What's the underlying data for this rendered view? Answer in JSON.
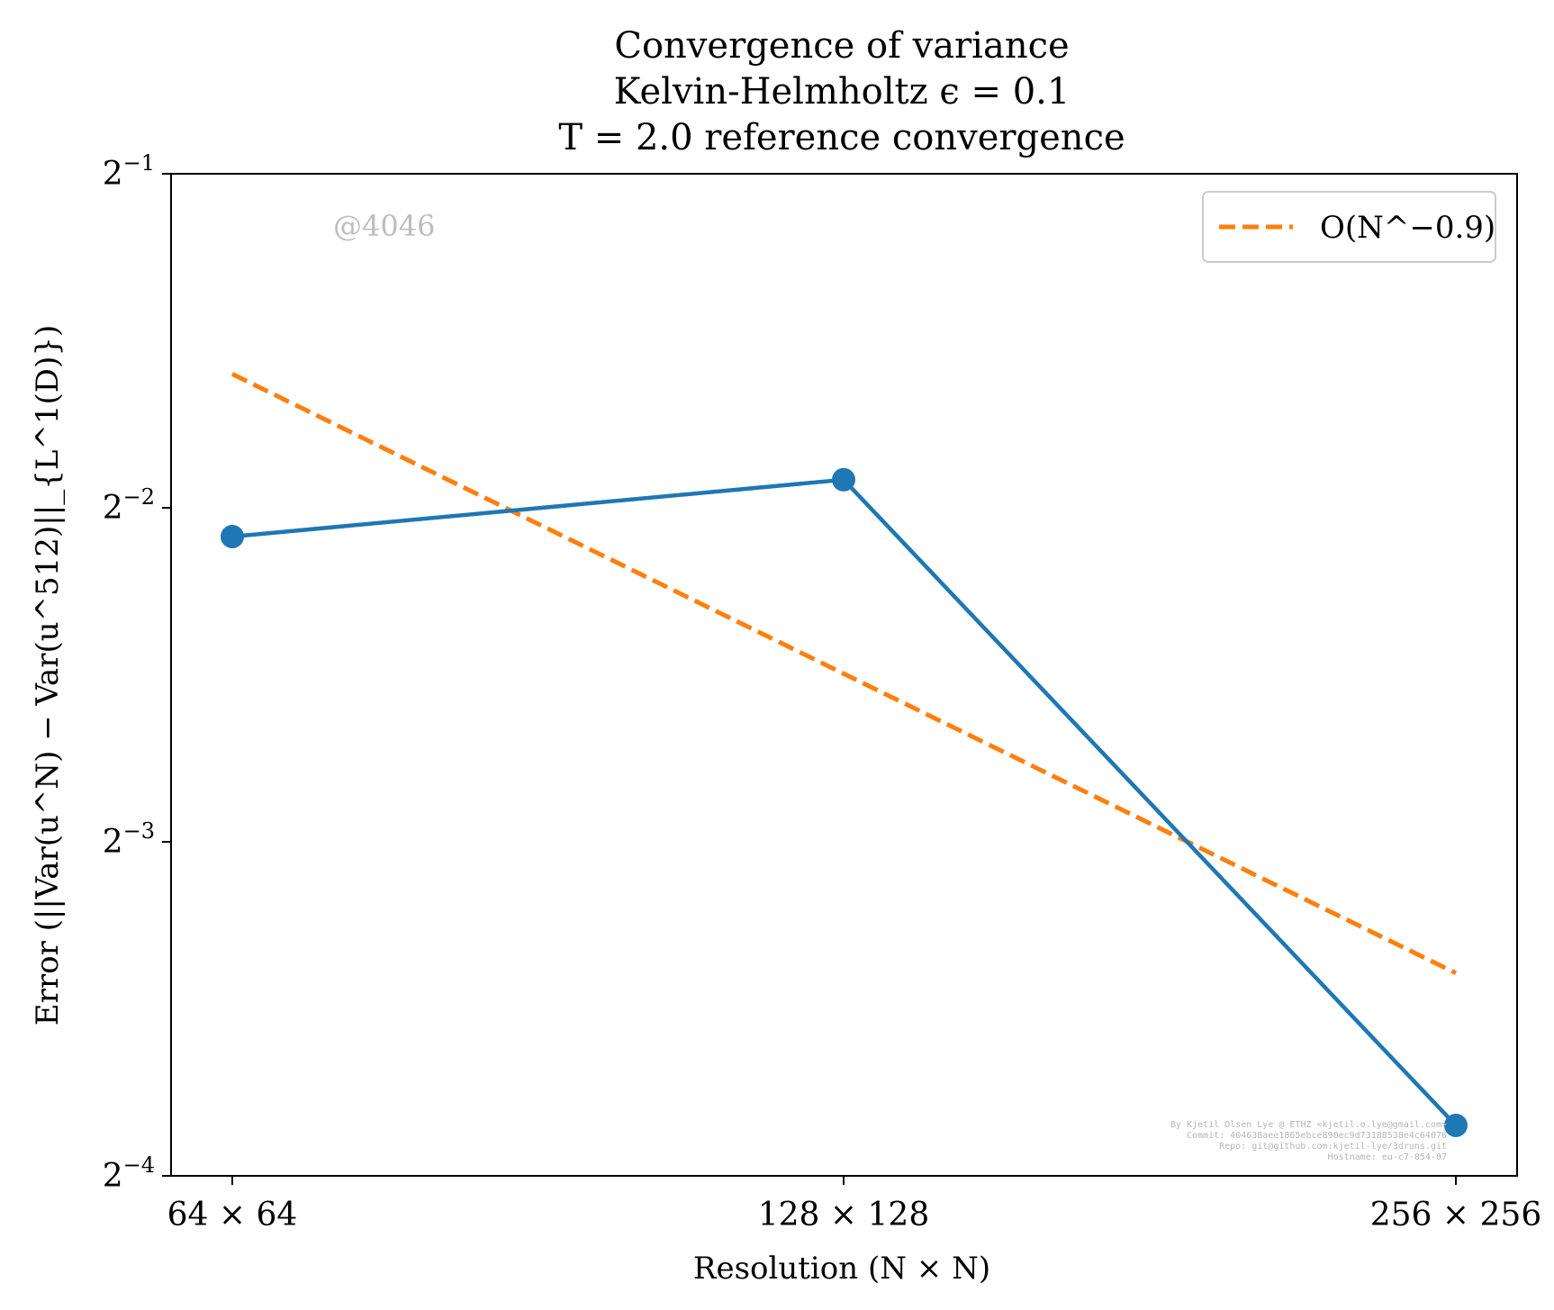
{
  "chart_data": {
    "type": "line",
    "title": [
      "Convergence of variance",
      "Kelvin-Helmholtz ϵ = 0.1",
      "T = 2.0 reference convergence"
    ],
    "xlabel": "Resolution (N × N)",
    "ylabel": "Error (||Var(u^N) − Var(u^512)||_{L^1(D)})",
    "x_scale": "log2",
    "y_scale": "log2",
    "categories": [
      "64 × 64",
      "128 × 128",
      "256 × 256"
    ],
    "x": [
      64,
      128,
      256
    ],
    "ylim_log2": [
      -4,
      -1
    ],
    "y_ticks": [
      {
        "base": "2",
        "exp": "−1",
        "log2": -1
      },
      {
        "base": "2",
        "exp": "−2",
        "log2": -2
      },
      {
        "base": "2",
        "exp": "−3",
        "log2": -3
      },
      {
        "base": "2",
        "exp": "−4",
        "log2": -4
      }
    ],
    "grid": false,
    "legend_position": "top-right",
    "series": [
      {
        "values": [
          0.2355,
          0.265,
          0.0694
        ],
        "color": "#1f77b4",
        "style": "solid",
        "marker": "circle"
      },
      {
        "name": "O(N^−0.9)",
        "values": [
          0.33,
          0.1772,
          0.0952
        ],
        "color": "#ff7f0e",
        "style": "dashed",
        "marker": "none"
      }
    ],
    "watermark": "@4046",
    "credits": [
      "By Kjetil Olsen Lye @ ETHZ <kjetil.o.lye@gmail.com>",
      "Commit: 404638aee1865ebce890ec9d73188538e4c64076",
      "Repo: git@github.com:kjetil-lye/3druns.git",
      "Hostname: eu-c7-054-07"
    ]
  }
}
